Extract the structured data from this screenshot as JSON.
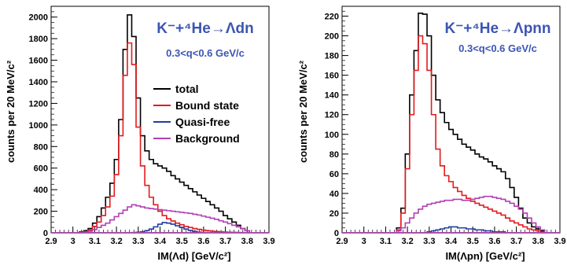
{
  "colors": {
    "total": "#000000",
    "bound": "#e41a1c",
    "quasi": "#1f3fa0",
    "background": "#b33fb3",
    "annotation": "#3c55b4"
  },
  "chart_data": [
    {
      "type": "line",
      "step": true,
      "xlabel": "IM(Λd) [GeV/c²]",
      "ylabel": "counts per 20 MeV/c²",
      "xlim": [
        2.9,
        3.9
      ],
      "ylim": [
        0,
        2100
      ],
      "xticks": [
        "2.9",
        "3",
        "3.1",
        "3.2",
        "3.3",
        "3.4",
        "3.5",
        "3.6",
        "3.7",
        "3.8",
        "3.9"
      ],
      "yticks": [
        "0",
        "200",
        "400",
        "600",
        "800",
        "1000",
        "1200",
        "1400",
        "1600",
        "1800",
        "2000"
      ],
      "grid": false,
      "annotation_title": "K⁻+⁴He→Λdn",
      "annotation_sub": "0.3<q<0.6 GeV/c",
      "legend": {
        "placement": "center-right",
        "entries": [
          "total",
          "Bound state",
          "Quasi-free",
          "Background"
        ]
      },
      "bins": [
        3.04,
        3.06,
        3.08,
        3.1,
        3.12,
        3.14,
        3.16,
        3.18,
        3.2,
        3.22,
        3.24,
        3.26,
        3.28,
        3.3,
        3.32,
        3.34,
        3.36,
        3.38,
        3.4,
        3.42,
        3.44,
        3.46,
        3.48,
        3.5,
        3.52,
        3.54,
        3.56,
        3.58,
        3.6,
        3.62,
        3.64,
        3.66,
        3.68,
        3.7,
        3.72,
        3.74,
        3.76,
        3.78,
        3.8
      ],
      "series": [
        {
          "name": "total",
          "colorKey": "total",
          "values": [
            10,
            20,
            40,
            90,
            150,
            230,
            330,
            460,
            680,
            1050,
            1700,
            2020,
            1820,
            1250,
            900,
            760,
            680,
            640,
            620,
            600,
            570,
            530,
            500,
            470,
            440,
            410,
            380,
            350,
            320,
            290,
            260,
            230,
            200,
            160,
            130,
            100,
            70,
            40,
            20
          ]
        },
        {
          "name": "Bound state",
          "colorKey": "bound",
          "values": [
            5,
            10,
            25,
            60,
            100,
            160,
            240,
            340,
            540,
            900,
            1460,
            1760,
            1560,
            980,
            620,
            440,
            330,
            260,
            200,
            160,
            130,
            110,
            90,
            75,
            60,
            50,
            40,
            32,
            25,
            20,
            15,
            12,
            9,
            7,
            5,
            4,
            3,
            2,
            1
          ]
        },
        {
          "name": "Quasi-free",
          "colorKey": "quasi",
          "values": [
            0,
            0,
            0,
            0,
            0,
            0,
            0,
            0,
            0,
            0,
            0,
            0,
            2,
            5,
            10,
            20,
            35,
            55,
            80,
            95,
            90,
            80,
            65,
            50,
            35,
            22,
            12,
            6,
            3,
            1,
            0,
            0,
            0,
            0,
            0,
            0,
            0,
            0,
            0
          ]
        },
        {
          "name": "Background",
          "colorKey": "background",
          "values": [
            5,
            10,
            15,
            30,
            50,
            70,
            90,
            120,
            150,
            180,
            210,
            240,
            260,
            250,
            240,
            230,
            225,
            220,
            215,
            210,
            205,
            200,
            195,
            190,
            185,
            180,
            172,
            165,
            155,
            145,
            135,
            125,
            112,
            100,
            85,
            70,
            55,
            38,
            20
          ]
        }
      ]
    },
    {
      "type": "line",
      "step": true,
      "xlabel": "IM(Λpn) [GeV/c²]",
      "ylabel": "counts per 20 MeV/c²",
      "xlim": [
        2.9,
        3.9
      ],
      "ylim": [
        0,
        230
      ],
      "xticks": [
        "2.9",
        "3",
        "3.1",
        "3.2",
        "3.3",
        "3.4",
        "3.5",
        "3.6",
        "3.7",
        "3.8",
        "3.9"
      ],
      "yticks": [
        "0",
        "20",
        "40",
        "60",
        "80",
        "100",
        "120",
        "140",
        "160",
        "180",
        "200",
        "220"
      ],
      "grid": false,
      "annotation_title": "K⁻+⁴He→Λpnn",
      "annotation_sub": "0.3<q<0.6 GeV/c",
      "bins": [
        3.16,
        3.18,
        3.2,
        3.22,
        3.24,
        3.26,
        3.28,
        3.3,
        3.32,
        3.34,
        3.36,
        3.38,
        3.4,
        3.42,
        3.44,
        3.46,
        3.48,
        3.5,
        3.52,
        3.54,
        3.56,
        3.58,
        3.6,
        3.62,
        3.64,
        3.66,
        3.68,
        3.7,
        3.72,
        3.74,
        3.76,
        3.78,
        3.8,
        3.82
      ],
      "series": [
        {
          "name": "total",
          "colorKey": "total",
          "values": [
            5,
            25,
            80,
            140,
            185,
            223,
            222,
            200,
            160,
            135,
            122,
            112,
            105,
            100,
            95,
            90,
            87,
            84,
            80,
            77,
            75,
            72,
            68,
            65,
            62,
            55,
            46,
            36,
            25,
            15,
            10,
            6,
            4,
            2
          ]
        },
        {
          "name": "Bound state",
          "colorKey": "bound",
          "values": [
            3,
            20,
            65,
            120,
            165,
            200,
            192,
            165,
            120,
            85,
            68,
            58,
            52,
            46,
            42,
            38,
            35,
            32,
            30,
            28,
            26,
            24,
            22,
            20,
            18,
            15,
            12,
            10,
            8,
            6,
            4,
            3,
            2,
            1
          ]
        },
        {
          "name": "Quasi-free",
          "colorKey": "quasi",
          "values": [
            0,
            0,
            0,
            0,
            0,
            0,
            0,
            1,
            2,
            3,
            4,
            5,
            6,
            6,
            5,
            5,
            4,
            4,
            3,
            3,
            2,
            2,
            1,
            1,
            1,
            0,
            0,
            0,
            0,
            0,
            0,
            0,
            0,
            0
          ]
        },
        {
          "name": "Background",
          "colorKey": "background",
          "values": [
            2,
            5,
            10,
            15,
            20,
            24,
            27,
            29,
            30,
            31,
            32,
            33,
            33,
            34,
            34,
            33,
            33,
            34,
            35,
            36,
            37,
            37,
            36,
            35,
            34,
            32,
            30,
            27,
            24,
            20,
            15,
            10,
            6,
            3
          ]
        }
      ]
    }
  ]
}
